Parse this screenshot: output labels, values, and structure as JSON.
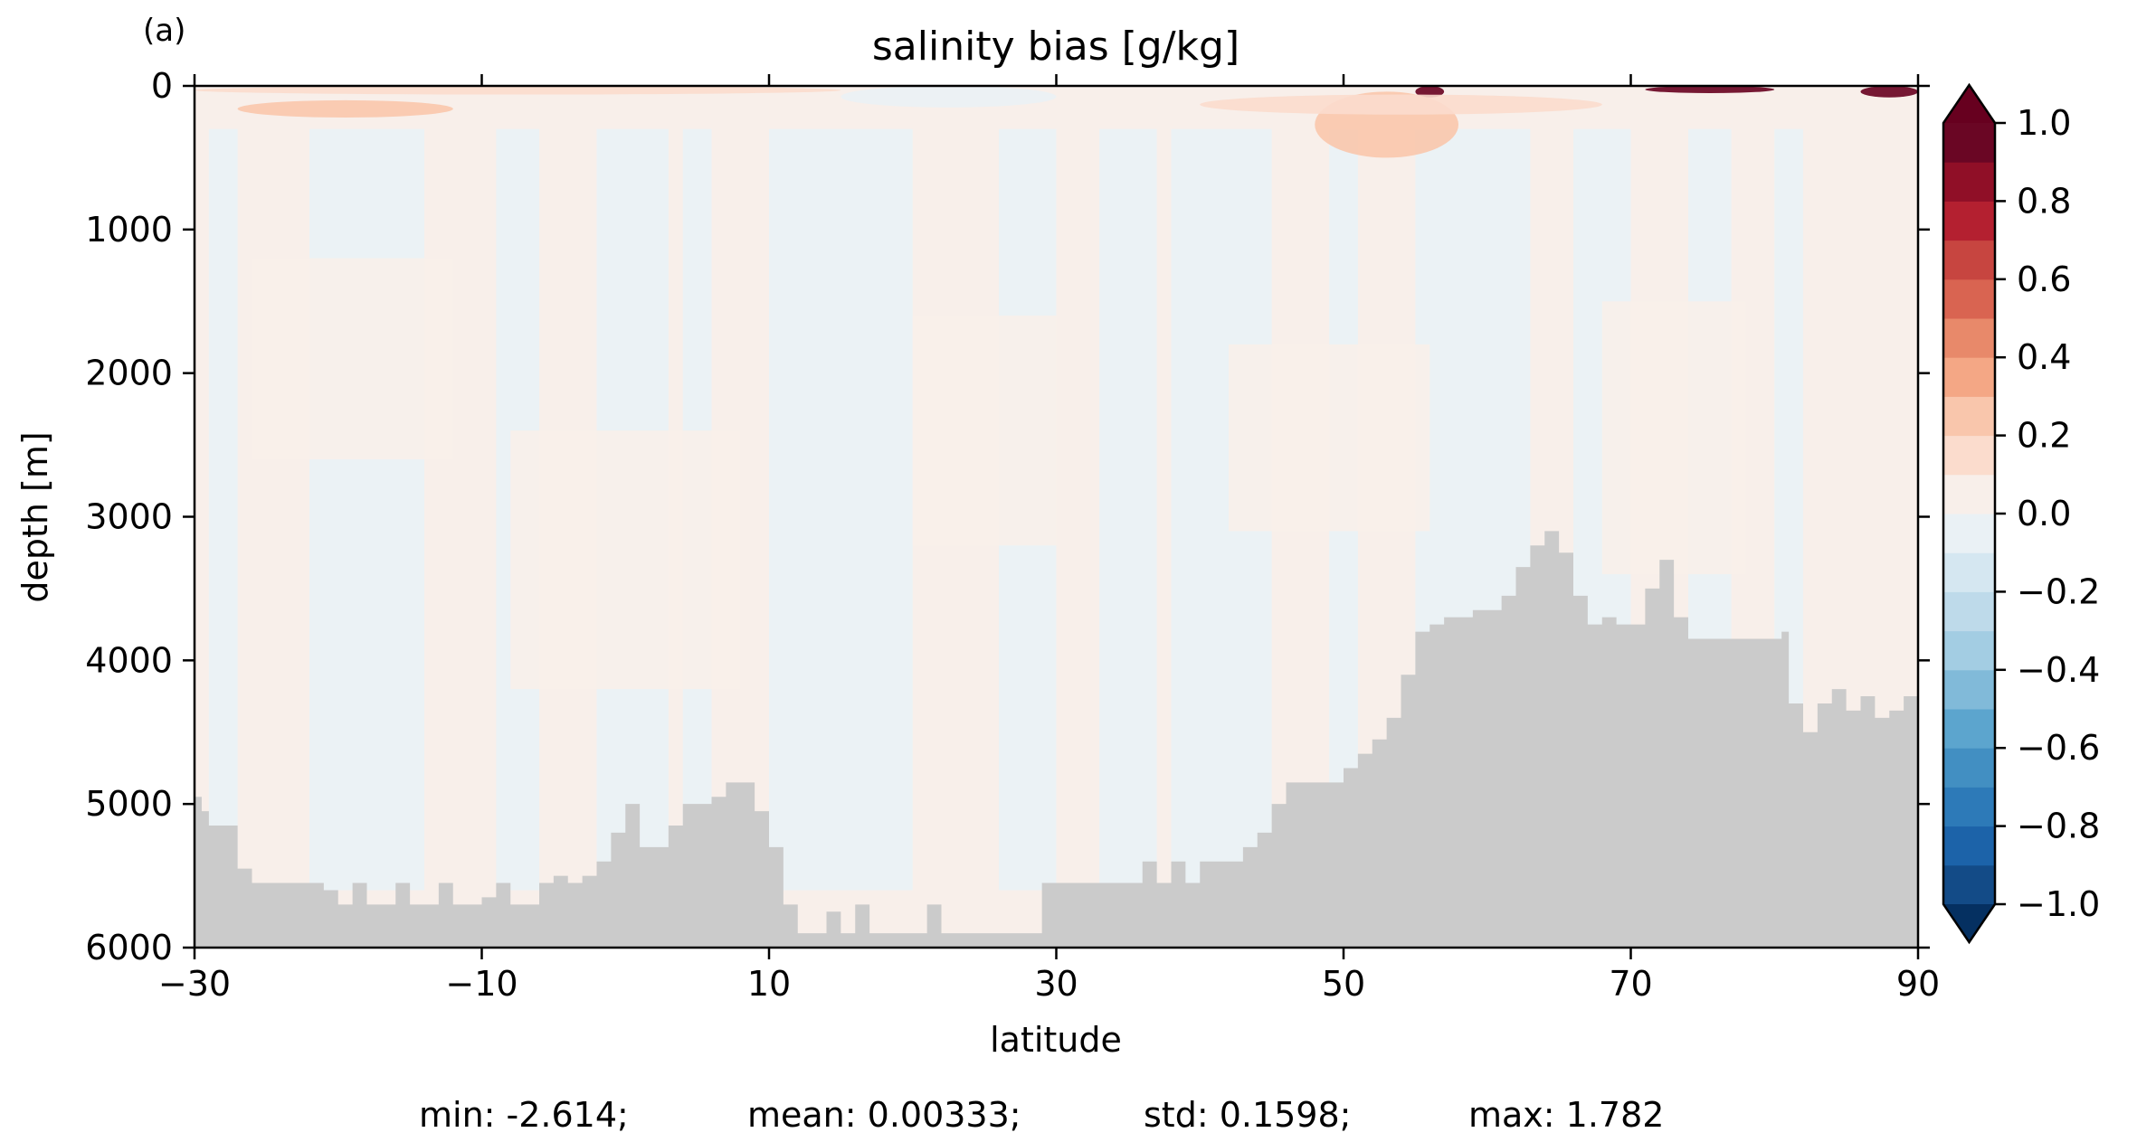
{
  "panel_label": "(a)",
  "chart_data": {
    "type": "heatmap",
    "title": "salinity bias [g/kg]",
    "xlabel": "latitude",
    "ylabel": "depth [m]",
    "xlim": [
      -30,
      90
    ],
    "ylim": [
      6000,
      0
    ],
    "y_inverted": true,
    "grid": false,
    "x_ticks": [
      -30,
      -10,
      10,
      30,
      50,
      70,
      90
    ],
    "x_tick_labels": [
      "−30",
      "−10",
      "10",
      "30",
      "50",
      "70",
      "90"
    ],
    "y_ticks": [
      0,
      1000,
      2000,
      3000,
      4000,
      5000,
      6000
    ],
    "y_tick_labels": [
      "0",
      "1000",
      "2000",
      "3000",
      "4000",
      "5000",
      "6000"
    ],
    "colorbar": {
      "levels": [
        -1.0,
        -0.9,
        -0.8,
        -0.7,
        -0.6,
        -0.5,
        -0.4,
        -0.3,
        -0.2,
        -0.1,
        0.0,
        0.1,
        0.2,
        0.3,
        0.4,
        0.5,
        0.6,
        0.7,
        0.8,
        0.9,
        1.0
      ],
      "colors": [
        "#134b87",
        "#1c63a9",
        "#2d7ab8",
        "#428fc2",
        "#5ca5ce",
        "#81bad9",
        "#a3cde3",
        "#bedaea",
        "#d5e7f1",
        "#eaf1f5",
        "#f8efea",
        "#fbdccd",
        "#f9c6ac",
        "#f4a785",
        "#e8896a",
        "#d96451",
        "#c74540",
        "#b42030",
        "#900f27",
        "#6a0624"
      ],
      "extend_low_color": "#053061",
      "extend_high_color": "#67001f",
      "tick_values": [
        1.0,
        0.8,
        0.6,
        0.4,
        0.2,
        0.0,
        -0.2,
        -0.4,
        -0.6,
        -0.8,
        -1.0
      ],
      "tick_labels": [
        "1.0",
        "0.8",
        "0.6",
        "0.4",
        "0.2",
        "0.0",
        "−0.2",
        "−0.4",
        "−0.6",
        "−0.8",
        "−1.0"
      ],
      "extend": "both"
    },
    "bathymetry": {
      "fill_color": "#cbcbcb",
      "latitude": [
        -30,
        -29.5,
        -29,
        -28,
        -27,
        -26,
        -25,
        -24,
        -23,
        -22,
        -21,
        -20,
        -19,
        -18,
        -17,
        -16,
        -15,
        -14,
        -13,
        -12,
        -11,
        -10,
        -9,
        -8,
        -7,
        -6,
        -5,
        -4,
        -3,
        -2,
        -1,
        0,
        1,
        2,
        3,
        4,
        5,
        6,
        7,
        8,
        9,
        10,
        11,
        12,
        13,
        14,
        15,
        16,
        17,
        18,
        19,
        20,
        21,
        22,
        23,
        24,
        25,
        26,
        27,
        28,
        29,
        30,
        31,
        32,
        33,
        34,
        35,
        36,
        37,
        38,
        39,
        40,
        41,
        42,
        43,
        44,
        45,
        46,
        47,
        48,
        49,
        50,
        51,
        52,
        53,
        54,
        55,
        56,
        57,
        58,
        59,
        60,
        61,
        62,
        63,
        64,
        65,
        66,
        67,
        68,
        69,
        70,
        71,
        72,
        73,
        74,
        75,
        76,
        77,
        78,
        79,
        80,
        80.5,
        81,
        82,
        83,
        84,
        85,
        86,
        87,
        88,
        89,
        90
      ],
      "depth": [
        4950,
        5050,
        5150,
        5150,
        5450,
        5550,
        5550,
        5550,
        5550,
        5550,
        5600,
        5700,
        5550,
        5700,
        5700,
        5550,
        5700,
        5700,
        5550,
        5700,
        5700,
        5650,
        5550,
        5700,
        5700,
        5550,
        5500,
        5550,
        5500,
        5400,
        5200,
        5000,
        5300,
        5300,
        5150,
        5000,
        5000,
        4950,
        4850,
        4850,
        5050,
        5300,
        5700,
        5900,
        5900,
        5750,
        5900,
        5700,
        5900,
        5900,
        5900,
        5900,
        5700,
        5900,
        5900,
        5900,
        5900,
        5900,
        5900,
        5900,
        5550,
        5550,
        5550,
        5550,
        5550,
        5550,
        5550,
        5400,
        5550,
        5400,
        5550,
        5400,
        5400,
        5400,
        5300,
        5200,
        5000,
        4850,
        4850,
        4850,
        4850,
        4750,
        4650,
        4550,
        4400,
        4100,
        3800,
        3750,
        3700,
        3700,
        3650,
        3650,
        3550,
        3350,
        3200,
        3100,
        3250,
        3550,
        3750,
        3700,
        3750,
        3750,
        3500,
        3300,
        3700,
        3850,
        3850,
        3850,
        3850,
        3850,
        3850,
        3850,
        3800,
        4300,
        4500,
        4300,
        4200,
        4350,
        4250,
        4400,
        4350,
        4250,
        4300
      ]
    },
    "anomalies": [
      {
        "lat_range": [
          -27,
          -12
        ],
        "depth_range": [
          100,
          220
        ],
        "bias": 0.2
      },
      {
        "lat_range": [
          -30,
          15
        ],
        "depth_range": [
          0,
          60
        ],
        "bias": 0.1
      },
      {
        "lat_range": [
          55,
          57
        ],
        "depth_range": [
          0,
          80
        ],
        "bias": 1.0
      },
      {
        "lat_range": [
          71,
          80
        ],
        "depth_range": [
          0,
          50
        ],
        "bias": 1.0
      },
      {
        "lat_range": [
          86,
          90
        ],
        "depth_range": [
          0,
          80
        ],
        "bias": 1.0
      },
      {
        "lat_range": [
          48,
          58
        ],
        "depth_range": [
          40,
          500
        ],
        "bias": 0.2
      },
      {
        "lat_range": [
          15,
          30
        ],
        "depth_range": [
          0,
          150
        ],
        "bias": -0.1
      },
      {
        "lat_range": [
          40,
          68
        ],
        "depth_range": [
          60,
          200
        ],
        "bias": 0.15
      }
    ]
  },
  "stats": {
    "min": "min: -2.614;",
    "mean": "mean: 0.00333;",
    "std": "std: 0.1598;",
    "max": "max: 1.782"
  }
}
